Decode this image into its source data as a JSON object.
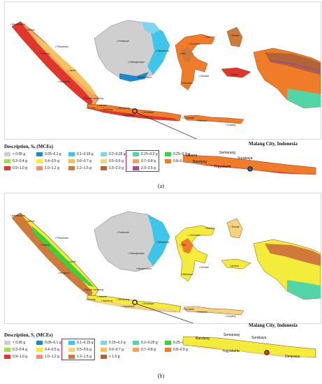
{
  "panel_a": {
    "legend_title": "Description, Sₛ (MCEs)",
    "inset_title": "Malang City, Indonesia",
    "caption_label": "(a)",
    "legend": [
      {
        "label": "< 0.05 g",
        "color": "#cfcfcf"
      },
      {
        "label": "0.05–0.1 g",
        "color": "#1e88c9"
      },
      {
        "label": "0.1–0.15 g",
        "color": "#3cc6ea"
      },
      {
        "label": "0.2–0.25 g",
        "color": "#7fd3ee"
      },
      {
        "label": "0.15–0.2 g",
        "color": "#52d6a8"
      },
      {
        "label": "0.25–0.3 g",
        "color": "#37d435"
      },
      {
        "label": "0.3–0.4 g",
        "color": "#a4e04a"
      },
      {
        "label": "0.4–0.5 g",
        "color": "#f4ec3a"
      },
      {
        "label": "0.6–0.7 g",
        "color": "#f7c25e"
      },
      {
        "label": "0.5–0.6 g",
        "color": "#f5d27c"
      },
      {
        "label": "0.7–0.8 g",
        "color": "#f3a35a"
      },
      {
        "label": "0.8–0.9 g",
        "color": "#f07c2a"
      },
      {
        "label": "0.9–1.0 g",
        "color": "#e0362b"
      },
      {
        "label": "1.0–1.2 g",
        "color": "#f28f74"
      },
      {
        "label": "1.2–1.5 g",
        "color": "#cf7a3a"
      },
      {
        "label": "1.5–2.0 g",
        "color": "#b26434"
      },
      {
        "label": "2.0–2.5 g",
        "color": "#a0508f"
      }
    ],
    "cities": [
      "Banda Aceh",
      "Medan",
      "Padang",
      "Pekanbaru",
      "Jambi",
      "Bengkulu",
      "Bandar Lampung",
      "Serang",
      "Jakarta",
      "Bandung",
      "Semarang",
      "Yogyakarta",
      "Surabaya",
      "Denpasar",
      "Pontianak",
      "Palangkaraya",
      "Banjarmasin",
      "Samarinda",
      "Manado",
      "Gorontalo",
      "Palu",
      "Makassar",
      "Kendari",
      "Ambon",
      "Ternate",
      "Kupang",
      "Mataram"
    ],
    "inset_cities": [
      "Jakarta",
      "Bandung",
      "Semarang",
      "Yogyakarta",
      "Surabaya"
    ]
  },
  "panel_b": {
    "legend_title": "Description, S₁ (MCEs)",
    "inset_title": "Malang City, Indonesia",
    "caption_label": "(b)",
    "legend": [
      {
        "label": "< 0.05 g",
        "color": "#cfcfcf"
      },
      {
        "label": "0.05–0.1 g",
        "color": "#1e88c9"
      },
      {
        "label": "0.1–0.15 g",
        "color": "#3cc6ea"
      },
      {
        "label": "0.15–0.2 g",
        "color": "#7fd3ee"
      },
      {
        "label": "0.2–0.25 g",
        "color": "#52d6a8"
      },
      {
        "label": "0.25–0.3 g",
        "color": "#37d435"
      },
      {
        "label": "0.3–0.4 g",
        "color": "#a4e04a"
      },
      {
        "label": "0.4–0.5 g",
        "color": "#f4ec3a"
      },
      {
        "label": "0.5–0.6 g",
        "color": "#f5d27c"
      },
      {
        "label": "0.6–0.7 g",
        "color": "#f7c25e"
      },
      {
        "label": "0.7–0.8 g",
        "color": "#f3a35a"
      },
      {
        "label": "0.8–0.9 g",
        "color": "#f07c2a"
      },
      {
        "label": "0.9–1.0 g",
        "color": "#e0362b"
      },
      {
        "label": "1.0–1.2 g",
        "color": "#f28f74"
      },
      {
        "label": "1.2–1.5 g",
        "color": "#cf7a3a"
      },
      {
        "label": "> 1.5 g",
        "color": "#b26434"
      }
    ],
    "cities": [
      "Banda Aceh",
      "Medan",
      "Padang",
      "Pekanbaru",
      "Jambi",
      "Bengkulu",
      "Bandar Lampung",
      "Serang",
      "Jakarta",
      "Bandung",
      "Semarang",
      "Yogyakarta",
      "Surabaya",
      "Denpasar",
      "Pontianak",
      "Palangkaraya",
      "Banjarmasin",
      "Samarinda",
      "Manado",
      "Gorontalo",
      "Palu",
      "Makassar",
      "Kendari",
      "Ambon",
      "Ternate",
      "Kupang",
      "Mataram"
    ],
    "inset_cities": [
      "Bandung",
      "Semarang",
      "Surabaya",
      "Yogyakarta",
      "Denpasar"
    ]
  }
}
